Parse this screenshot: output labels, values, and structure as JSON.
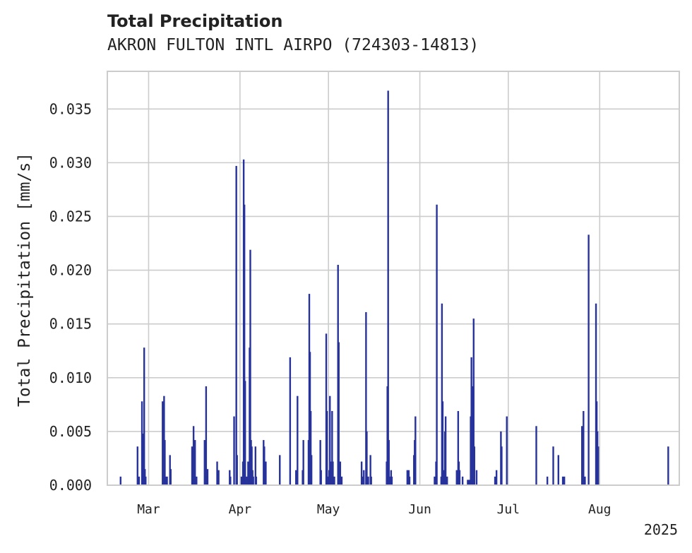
{
  "chart_data": {
    "type": "bar",
    "title": "Total Precipitation",
    "subtitle": "AKRON FULTON INTL AIRPO (724303-14813)",
    "ylabel": "Total Precipitation [mm/s]",
    "xlabel": "",
    "year_label": "2025",
    "ylim": [
      0,
      0.0385
    ],
    "xlim": [
      "2025-02-15",
      "2025-08-28"
    ],
    "yticks": [
      0.0,
      0.005,
      0.01,
      0.015,
      0.02,
      0.025,
      0.03,
      0.035
    ],
    "ytick_labels": [
      "0.000",
      "0.005",
      "0.010",
      "0.015",
      "0.020",
      "0.025",
      "0.030",
      "0.035"
    ],
    "xticks": [
      {
        "date": "2025-03-01",
        "label": "Mar"
      },
      {
        "date": "2025-04-01",
        "label": "Apr"
      },
      {
        "date": "2025-05-01",
        "label": "May"
      },
      {
        "date": "2025-06-01",
        "label": "Jun"
      },
      {
        "date": "2025-07-01",
        "label": "Jul"
      },
      {
        "date": "2025-08-01",
        "label": "Aug"
      }
    ],
    "grid": true,
    "colors": {
      "bar": "#27339b",
      "grid": "#cccccc",
      "spine": "#cccccc"
    },
    "points": [
      [
        "2025-02-19T12:00",
        0.0008
      ],
      [
        "2025-02-25T06:00",
        0.0036
      ],
      [
        "2025-02-25T18:00",
        0.0008
      ],
      [
        "2025-02-26T18:00",
        0.0078
      ],
      [
        "2025-02-27T00:00",
        0.0048
      ],
      [
        "2025-02-27T06:00",
        0.0028
      ],
      [
        "2025-02-27T12:00",
        0.0128
      ],
      [
        "2025-02-27T18:00",
        0.0015
      ],
      [
        "2025-02-28T00:00",
        0.0008
      ],
      [
        "2025-03-05T18:00",
        0.0078
      ],
      [
        "2025-03-06T06:00",
        0.0083
      ],
      [
        "2025-03-06T12:00",
        0.0042
      ],
      [
        "2025-03-06T18:00",
        0.0008
      ],
      [
        "2025-03-07T06:00",
        0.0008
      ],
      [
        "2025-03-08T06:00",
        0.0028
      ],
      [
        "2025-03-08T12:00",
        0.0015
      ],
      [
        "2025-03-15T18:00",
        0.0036
      ],
      [
        "2025-03-16T06:00",
        0.0055
      ],
      [
        "2025-03-16T18:00",
        0.0042
      ],
      [
        "2025-03-17T06:00",
        0.0008
      ],
      [
        "2025-03-20T00:00",
        0.0042
      ],
      [
        "2025-03-20T12:00",
        0.0092
      ],
      [
        "2025-03-21T00:00",
        0.0015
      ],
      [
        "2025-03-24T06:00",
        0.0022
      ],
      [
        "2025-03-24T18:00",
        0.0014
      ],
      [
        "2025-03-28T12:00",
        0.0014
      ],
      [
        "2025-03-28T18:00",
        0.0008
      ],
      [
        "2025-03-30T00:00",
        0.0064
      ],
      [
        "2025-03-30T18:00",
        0.0297
      ],
      [
        "2025-03-31T00:00",
        0.0028
      ],
      [
        "2025-04-01T12:00",
        0.0008
      ],
      [
        "2025-04-02T00:00",
        0.0022
      ],
      [
        "2025-04-02T06:00",
        0.0303
      ],
      [
        "2025-04-02T12:00",
        0.0261
      ],
      [
        "2025-04-02T18:00",
        0.0097
      ],
      [
        "2025-04-03T06:00",
        0.0008
      ],
      [
        "2025-04-03T18:00",
        0.0022
      ],
      [
        "2025-04-04T06:00",
        0.0128
      ],
      [
        "2025-04-04T12:00",
        0.0219
      ],
      [
        "2025-04-04T18:00",
        0.0042
      ],
      [
        "2025-04-05T00:00",
        0.0036
      ],
      [
        "2025-04-05T06:00",
        0.0014
      ],
      [
        "2025-04-05T12:00",
        0.0008
      ],
      [
        "2025-04-06T06:00",
        0.0036
      ],
      [
        "2025-04-06T12:00",
        0.0008
      ],
      [
        "2025-04-09T00:00",
        0.0042
      ],
      [
        "2025-04-09T06:00",
        0.0036
      ],
      [
        "2025-04-09T18:00",
        0.0022
      ],
      [
        "2025-04-14T12:00",
        0.0028
      ],
      [
        "2025-04-18T00:00",
        0.0119
      ],
      [
        "2025-04-20T00:00",
        0.0014
      ],
      [
        "2025-04-20T12:00",
        0.0083
      ],
      [
        "2025-04-22T06:00",
        0.0014
      ],
      [
        "2025-04-22T12:00",
        0.0042
      ],
      [
        "2025-04-24T06:00",
        0.0042
      ],
      [
        "2025-04-24T12:00",
        0.0178
      ],
      [
        "2025-04-24T18:00",
        0.0124
      ],
      [
        "2025-04-25T00:00",
        0.0069
      ],
      [
        "2025-04-25T06:00",
        0.0028
      ],
      [
        "2025-04-28T06:00",
        0.0042
      ],
      [
        "2025-04-28T12:00",
        0.0014
      ],
      [
        "2025-04-30T06:00",
        0.0141
      ],
      [
        "2025-04-30T12:00",
        0.0069
      ],
      [
        "2025-04-30T18:00",
        0.0008
      ],
      [
        "2025-05-01T06:00",
        0.0014
      ],
      [
        "2025-05-01T12:00",
        0.0083
      ],
      [
        "2025-05-01T18:00",
        0.0022
      ],
      [
        "2025-05-02T06:00",
        0.0069
      ],
      [
        "2025-05-02T12:00",
        0.0022
      ],
      [
        "2025-05-03T00:00",
        0.0008
      ],
      [
        "2025-05-04T06:00",
        0.0205
      ],
      [
        "2025-05-04T12:00",
        0.0133
      ],
      [
        "2025-05-05T00:00",
        0.0022
      ],
      [
        "2025-05-05T12:00",
        0.0008
      ],
      [
        "2025-05-12T06:00",
        0.0022
      ],
      [
        "2025-05-12T12:00",
        0.0008
      ],
      [
        "2025-05-13T00:00",
        0.0014
      ],
      [
        "2025-05-13T18:00",
        0.0161
      ],
      [
        "2025-05-14T00:00",
        0.005
      ],
      [
        "2025-05-14T12:00",
        0.0008
      ],
      [
        "2025-05-15T06:00",
        0.0028
      ],
      [
        "2025-05-15T12:00",
        0.0008
      ],
      [
        "2025-05-20T18:00",
        0.0022
      ],
      [
        "2025-05-21T00:00",
        0.0092
      ],
      [
        "2025-05-21T06:00",
        0.0367
      ],
      [
        "2025-05-21T12:00",
        0.0042
      ],
      [
        "2025-05-21T18:00",
        0.0008
      ],
      [
        "2025-05-22T06:00",
        0.0014
      ],
      [
        "2025-05-22T12:00",
        0.0008
      ],
      [
        "2025-05-27T18:00",
        0.0014
      ],
      [
        "2025-05-28T06:00",
        0.0014
      ],
      [
        "2025-05-28T12:00",
        0.0008
      ],
      [
        "2025-05-30T00:00",
        0.0028
      ],
      [
        "2025-05-30T06:00",
        0.0042
      ],
      [
        "2025-05-30T12:00",
        0.0064
      ],
      [
        "2025-06-06T00:00",
        0.0008
      ],
      [
        "2025-06-06T12:00",
        0.0022
      ],
      [
        "2025-06-06T18:00",
        0.0261
      ],
      [
        "2025-06-08T06:00",
        0.0008
      ],
      [
        "2025-06-08T12:00",
        0.0169
      ],
      [
        "2025-06-08T18:00",
        0.0078
      ],
      [
        "2025-06-09T06:00",
        0.0014
      ],
      [
        "2025-06-09T12:00",
        0.005
      ],
      [
        "2025-06-09T18:00",
        0.0064
      ],
      [
        "2025-06-10T06:00",
        0.0008
      ],
      [
        "2025-06-13T12:00",
        0.0014
      ],
      [
        "2025-06-13T18:00",
        0.0008
      ],
      [
        "2025-06-14T00:00",
        0.0069
      ],
      [
        "2025-06-14T06:00",
        0.0022
      ],
      [
        "2025-06-14T12:00",
        0.0014
      ],
      [
        "2025-06-15T12:00",
        0.0008
      ],
      [
        "2025-06-17T06:00",
        0.0005
      ],
      [
        "2025-06-17T18:00",
        0.0005
      ],
      [
        "2025-06-18T06:00",
        0.0064
      ],
      [
        "2025-06-18T12:00",
        0.0119
      ],
      [
        "2025-06-18T18:00",
        0.0008
      ],
      [
        "2025-06-19T00:00",
        0.0092
      ],
      [
        "2025-06-19T06:00",
        0.0155
      ],
      [
        "2025-06-19T12:00",
        0.0036
      ],
      [
        "2025-06-20T06:00",
        0.0014
      ],
      [
        "2025-06-26T12:00",
        0.0008
      ],
      [
        "2025-06-27T00:00",
        0.0014
      ],
      [
        "2025-06-28T12:00",
        0.005
      ],
      [
        "2025-06-28T18:00",
        0.0036
      ],
      [
        "2025-06-30T12:00",
        0.0064
      ],
      [
        "2025-07-10T12:00",
        0.0055
      ],
      [
        "2025-07-14T06:00",
        0.0008
      ],
      [
        "2025-07-16T06:00",
        0.0036
      ],
      [
        "2025-07-18T00:00",
        0.0028
      ],
      [
        "2025-07-19T12:00",
        0.0008
      ],
      [
        "2025-07-20T00:00",
        0.0008
      ],
      [
        "2025-07-26T00:00",
        0.0055
      ],
      [
        "2025-07-26T12:00",
        0.0069
      ],
      [
        "2025-07-27T00:00",
        0.0008
      ],
      [
        "2025-07-28T06:00",
        0.0233
      ],
      [
        "2025-07-30T18:00",
        0.0169
      ],
      [
        "2025-07-31T00:00",
        0.0078
      ],
      [
        "2025-07-31T06:00",
        0.005
      ],
      [
        "2025-07-31T12:00",
        0.0036
      ],
      [
        "2025-08-24T06:00",
        0.0036
      ]
    ]
  }
}
